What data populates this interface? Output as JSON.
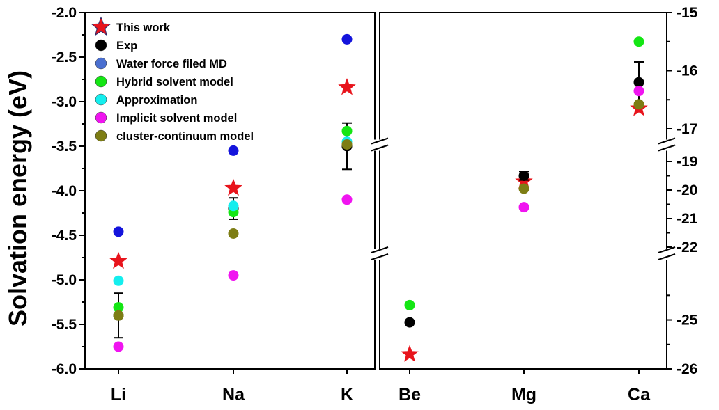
{
  "chart_data": {
    "type": "scatter",
    "ylabel": "Solvation energy (eV)",
    "categories_left": [
      "Li",
      "Na",
      "K"
    ],
    "categories_right": [
      "Be",
      "Mg",
      "Ca"
    ],
    "left_axis": {
      "ylim": [
        -6.0,
        -2.0
      ],
      "ticks": [
        "-2.0",
        "-2.5",
        "-3.0",
        "-3.5",
        "-4.0",
        "-4.5",
        "-5.0",
        "-5.5",
        "-6.0"
      ]
    },
    "right_axis": {
      "segments": [
        {
          "ylim": [
            -17,
            -15
          ],
          "ticks": [
            "-15",
            "-16",
            "-17"
          ]
        },
        {
          "ylim": [
            -22,
            -19
          ],
          "ticks": [
            "-19",
            "-20",
            "-21",
            "-22"
          ]
        },
        {
          "ylim": [
            -26,
            -23.8
          ],
          "ticks": [
            "-25",
            "-26"
          ]
        }
      ]
    },
    "series": [
      {
        "name": "This work",
        "marker": "star",
        "color": "#e8141c",
        "left": [
          -4.79,
          -3.97,
          -2.84
        ],
        "right": [
          -25.7,
          -19.7,
          -16.65
        ]
      },
      {
        "name": "Exp",
        "marker": "circle",
        "color": "#000000",
        "left": [
          -5.4,
          -4.2,
          -3.5
        ],
        "right": [
          -25.05,
          -19.5,
          -16.2
        ],
        "err": {
          "left": [
            0.25,
            0.12,
            0.26
          ],
          "right": [
            0,
            0.15,
            0.35
          ]
        }
      },
      {
        "name": "Water force filed MD",
        "marker": "circle",
        "color": "#1414dc",
        "left": [
          -4.46,
          -3.55,
          -2.3
        ],
        "right": [
          null,
          null,
          null
        ]
      },
      {
        "name": "Hybrid solvent model",
        "marker": "circle",
        "color": "#14e614",
        "left": [
          -5.31,
          -4.24,
          -3.33
        ],
        "right": [
          -24.7,
          -18.9,
          -15.5
        ]
      },
      {
        "name": "Approximation",
        "marker": "circle",
        "color": "#14eeee",
        "left": [
          -5.01,
          -4.17,
          -3.45
        ],
        "right": [
          null,
          null,
          null
        ]
      },
      {
        "name": "Implicit solvent model",
        "marker": "circle",
        "color": "#f014f0",
        "left": [
          -5.75,
          -4.95,
          -4.1
        ],
        "right": [
          null,
          -20.6,
          -16.35
        ]
      },
      {
        "name": "cluster-continuum model",
        "marker": "circle",
        "color": "#7d7d14",
        "left": [
          -5.4,
          -4.48,
          -3.48
        ],
        "right": [
          null,
          -19.95,
          -16.58
        ]
      }
    ]
  }
}
